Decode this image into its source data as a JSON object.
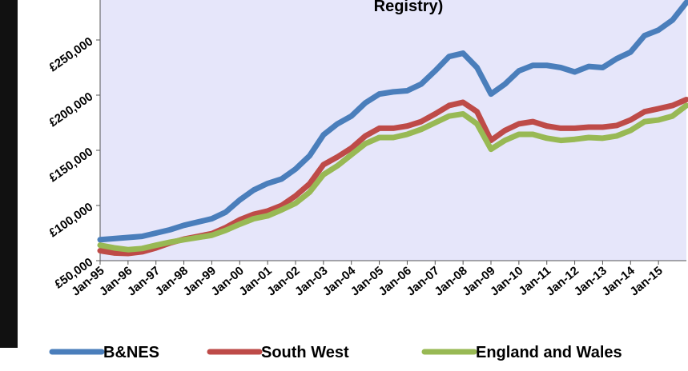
{
  "chart_data": {
    "type": "line",
    "title": "Registry)",
    "categories": [
      "Jan-95",
      null,
      "Jan-96",
      null,
      "Jan-97",
      null,
      "Jan-98",
      null,
      "Jan-99",
      null,
      "Jan-00",
      null,
      "Jan-01",
      null,
      "Jan-02",
      null,
      "Jan-03",
      null,
      "Jan-04",
      null,
      "Jan-05",
      null,
      "Jan-06",
      null,
      "Jan-07",
      null,
      "Jan-08",
      null,
      "Jan-09",
      null,
      "Jan-10",
      null,
      "Jan-11",
      null,
      "Jan-12",
      null,
      "Jan-13",
      null,
      "Jan-14",
      null,
      "Jan-15",
      null,
      null
    ],
    "series": [
      {
        "name": "B&NES",
        "color": "#4a7ebb",
        "values": [
          69000,
          70000,
          71000,
          72000,
          75000,
          78000,
          82000,
          85000,
          88000,
          94000,
          105000,
          114000,
          120000,
          124000,
          133000,
          145000,
          164000,
          174000,
          181000,
          193000,
          201000,
          203000,
          204000,
          210000,
          222000,
          235000,
          238000,
          225000,
          201000,
          210000,
          222000,
          227000,
          227000,
          225000,
          221000,
          226000,
          225000,
          233000,
          239000,
          254000,
          259000,
          268000,
          284000
        ]
      },
      {
        "name": "South West",
        "color": "#be4b48",
        "values": [
          59000,
          57000,
          56500,
          58000,
          61500,
          66000,
          69500,
          72000,
          74500,
          80000,
          87000,
          92000,
          95000,
          100000,
          108700,
          119600,
          137000,
          144000,
          152000,
          163000,
          170000,
          170000,
          172000,
          176000,
          183000,
          190600,
          193500,
          185000,
          159000,
          168000,
          174000,
          176000,
          172000,
          170000,
          170000,
          171000,
          171000,
          172500,
          177500,
          185000,
          187700,
          190600,
          196000
        ]
      },
      {
        "name": "England and Wales",
        "color": "#98b954",
        "values": [
          64000,
          61600,
          60000,
          61000,
          64000,
          66700,
          69000,
          71000,
          73000,
          77500,
          83000,
          88000,
          90600,
          96000,
          102000,
          112000,
          128000,
          136000,
          146000,
          156000,
          161600,
          161600,
          164500,
          169000,
          175000,
          181000,
          183000,
          174000,
          151000,
          159000,
          164500,
          164500,
          161000,
          159000,
          160000,
          161600,
          161000,
          163000,
          168000,
          176000,
          177500,
          181000,
          190600
        ]
      }
    ],
    "ylim": [
      50000,
      300000
    ],
    "yticks": [
      {
        "value": 50000,
        "label": "£50,000"
      },
      {
        "value": 100000,
        "label": "£100,000"
      },
      {
        "value": 150000,
        "label": "£150,000"
      },
      {
        "value": 200000,
        "label": "£200,000"
      },
      {
        "value": 250000,
        "label": "£250,000"
      }
    ],
    "grid": false,
    "legend": "bottom"
  }
}
